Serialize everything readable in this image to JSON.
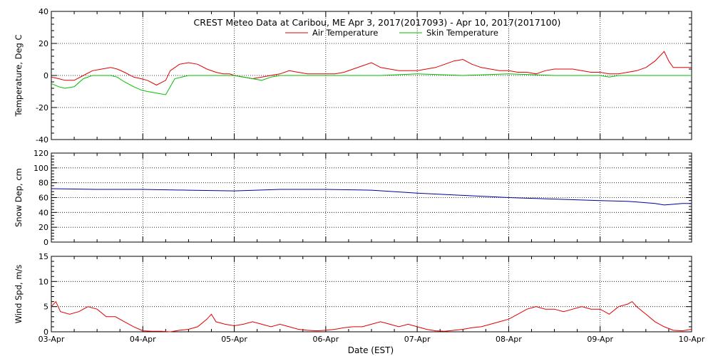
{
  "title": "CREST Meteo Data at Caribou, ME   Apr  3, 2017(2017093) - Apr 10, 2017(2017100)",
  "xlabel": "Date (EST)",
  "x_tick_labels": [
    "03-Apr",
    "04-Apr",
    "05-Apr",
    "06-Apr",
    "07-Apr",
    "08-Apr",
    "09-Apr",
    "10-Apr"
  ],
  "colors": {
    "air": "#e00000",
    "skin": "#00c000",
    "snow": "#0000a0",
    "wind": "#e00000"
  },
  "chart_data": [
    {
      "type": "line",
      "ylabel": "Temperature, Deg C",
      "ylim": [
        -40,
        40
      ],
      "xlim": [
        "03-Apr",
        "10-Apr"
      ],
      "yticks": [
        -40,
        -20,
        0,
        20,
        40
      ],
      "grid": true,
      "legend": "top-center",
      "series": [
        {
          "name": "Air Temperature",
          "color": "#e00000",
          "x": [
            0.0,
            0.08,
            0.15,
            0.25,
            0.35,
            0.45,
            0.55,
            0.65,
            0.72,
            0.8,
            0.9,
            0.98,
            1.05,
            1.15,
            1.25,
            1.3,
            1.4,
            1.5,
            1.6,
            1.7,
            1.8,
            1.88,
            1.95,
            2.0,
            2.1,
            2.2,
            2.3,
            2.4,
            2.5,
            2.6,
            2.7,
            2.8,
            2.9,
            3.0,
            3.1,
            3.2,
            3.3,
            3.4,
            3.5,
            3.6,
            3.7,
            3.8,
            3.9,
            4.0,
            4.1,
            4.2,
            4.3,
            4.4,
            4.5,
            4.6,
            4.7,
            4.8,
            4.9,
            5.0,
            5.1,
            5.2,
            5.3,
            5.4,
            5.5,
            5.6,
            5.7,
            5.8,
            5.9,
            6.0,
            6.1,
            6.2,
            6.3,
            6.4,
            6.5,
            6.6,
            6.65,
            6.7,
            6.75,
            6.8,
            6.9,
            7.0
          ],
          "y": [
            -1,
            -2,
            -3,
            -3,
            0,
            3,
            4,
            5,
            4,
            2,
            -1,
            -2,
            -3,
            -6,
            -3,
            3,
            7,
            8,
            7,
            4,
            2,
            1,
            1,
            0,
            -1,
            -2,
            -1,
            0,
            1,
            3,
            2,
            1,
            1,
            1,
            1,
            2,
            4,
            6,
            8,
            5,
            4,
            3,
            3,
            3,
            4,
            5,
            7,
            9,
            10,
            7,
            5,
            4,
            3,
            3,
            2,
            2,
            1,
            3,
            4,
            4,
            4,
            3,
            2,
            2,
            1,
            1,
            2,
            3,
            5,
            9,
            12,
            15,
            9,
            5,
            5,
            5
          ]
        },
        {
          "name": "Skin Temperature",
          "color": "#00c000",
          "x": [
            0.0,
            0.08,
            0.15,
            0.25,
            0.35,
            0.45,
            0.55,
            0.65,
            0.72,
            0.8,
            0.9,
            0.98,
            1.05,
            1.15,
            1.25,
            1.35,
            1.5,
            1.7,
            1.9,
            2.0,
            2.1,
            2.2,
            2.3,
            2.4,
            2.5,
            2.7,
            3.0,
            3.3,
            3.6,
            4.0,
            4.5,
            5.0,
            5.5,
            6.0,
            6.1,
            6.2,
            6.5,
            6.8,
            6.9,
            7.0
          ],
          "y": [
            -5,
            -7,
            -8,
            -7,
            -2,
            0,
            0,
            0,
            -1,
            -4,
            -7,
            -9,
            -10,
            -11,
            -12,
            -2,
            0,
            0,
            0,
            0,
            -1,
            -2,
            -3,
            -1,
            0,
            0,
            0,
            0,
            0,
            1,
            0,
            1,
            0,
            0,
            -1,
            0,
            0,
            0,
            0,
            0
          ]
        }
      ]
    },
    {
      "type": "line",
      "ylabel": "Snow Dep, cm",
      "ylim": [
        0,
        120
      ],
      "xlim": [
        "03-Apr",
        "10-Apr"
      ],
      "yticks": [
        0,
        20,
        40,
        60,
        80,
        100,
        120
      ],
      "grid": true,
      "series": [
        {
          "name": "",
          "color": "#0000a0",
          "x": [
            0.0,
            0.5,
            1.0,
            1.5,
            2.0,
            2.5,
            3.0,
            3.5,
            4.0,
            4.5,
            5.0,
            5.5,
            6.0,
            6.3,
            6.6,
            6.7,
            6.8,
            6.9,
            7.0
          ],
          "y": [
            72,
            71,
            71,
            70,
            69,
            71,
            71,
            70,
            66,
            63,
            60,
            58,
            56,
            55,
            52,
            50,
            51,
            52,
            52
          ]
        }
      ]
    },
    {
      "type": "line",
      "ylabel": "Wind Spd, m/s",
      "ylim": [
        0,
        15
      ],
      "xlim": [
        "03-Apr",
        "10-Apr"
      ],
      "yticks": [
        0,
        5,
        10,
        15
      ],
      "grid": true,
      "series": [
        {
          "name": "",
          "color": "#e00000",
          "x": [
            0.0,
            0.05,
            0.1,
            0.2,
            0.3,
            0.4,
            0.5,
            0.6,
            0.7,
            0.8,
            0.9,
            1.0,
            1.1,
            1.2,
            1.3,
            1.4,
            1.5,
            1.6,
            1.7,
            1.75,
            1.8,
            1.9,
            2.0,
            2.1,
            2.2,
            2.3,
            2.4,
            2.5,
            2.6,
            2.7,
            2.8,
            2.9,
            3.0,
            3.1,
            3.2,
            3.3,
            3.4,
            3.5,
            3.6,
            3.7,
            3.8,
            3.9,
            4.0,
            4.1,
            4.2,
            4.3,
            4.4,
            4.5,
            4.6,
            4.7,
            4.8,
            4.9,
            5.0,
            5.1,
            5.2,
            5.3,
            5.4,
            5.5,
            5.6,
            5.7,
            5.8,
            5.9,
            6.0,
            6.1,
            6.2,
            6.3,
            6.35,
            6.4,
            6.5,
            6.6,
            6.7,
            6.8,
            6.9,
            7.0
          ],
          "y": [
            5,
            6,
            4,
            3.5,
            4,
            5,
            4.5,
            3,
            3,
            2,
            1,
            0.2,
            0.1,
            0.1,
            0,
            0.3,
            0.5,
            1,
            2.5,
            3.5,
            2,
            1.5,
            1.2,
            1.5,
            2,
            1.5,
            1,
            1.5,
            1,
            0.5,
            0.3,
            0.2,
            0.3,
            0.5,
            0.8,
            1,
            1,
            1.5,
            2,
            1.5,
            1,
            1.5,
            1,
            0.5,
            0.2,
            0.1,
            0.3,
            0.5,
            0.8,
            1,
            1.5,
            2,
            2.5,
            3.5,
            4.5,
            5,
            4.5,
            4.5,
            4,
            4.5,
            5,
            4.5,
            4.5,
            3.5,
            5,
            5.5,
            6,
            5,
            3.5,
            2,
            1,
            0.3,
            0.2,
            0.5
          ]
        }
      ]
    }
  ]
}
